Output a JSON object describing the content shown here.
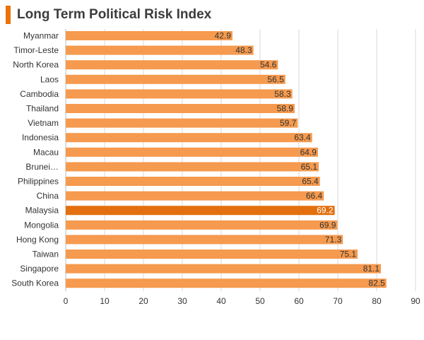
{
  "header": {
    "title": "Long Term Political Risk Index"
  },
  "colors": {
    "bar": "#f59a4e",
    "highlight": "#e46f0e",
    "accent": "#e8730c",
    "grid": "#d9d9d9",
    "text": "#333333"
  },
  "chart_data": {
    "type": "bar",
    "orientation": "horizontal",
    "title": "Long Term Political Risk Index",
    "categories": [
      "Myanmar",
      "Timor-Leste",
      "North Korea",
      "Laos",
      "Cambodia",
      "Thailand",
      "Vietnam",
      "Indonesia",
      "Macau",
      "Brunei…",
      "Philippines",
      "China",
      "Malaysia",
      "Mongolia",
      "Hong Kong",
      "Taiwan",
      "Singapore",
      "South Korea"
    ],
    "values": [
      42.9,
      48.3,
      54.6,
      56.5,
      58.3,
      58.9,
      59.7,
      63.4,
      64.9,
      65.1,
      65.4,
      66.4,
      69.2,
      69.9,
      71.3,
      75.1,
      81.1,
      82.5
    ],
    "value_labels": [
      "42.9",
      "48.3",
      "54.6",
      "56.5",
      "58.3",
      "58.9",
      "59.7",
      "63.4",
      "64.9",
      "65.1",
      "65.4",
      "66.4",
      "69.2",
      "69.9",
      "71.3",
      "75.1",
      "81.1",
      "82.5"
    ],
    "highlight": "Malaysia",
    "xlim": [
      0,
      90
    ],
    "xticks": [
      "0",
      "10",
      "20",
      "30",
      "40",
      "50",
      "60",
      "70",
      "80",
      "90"
    ],
    "grid": true
  }
}
